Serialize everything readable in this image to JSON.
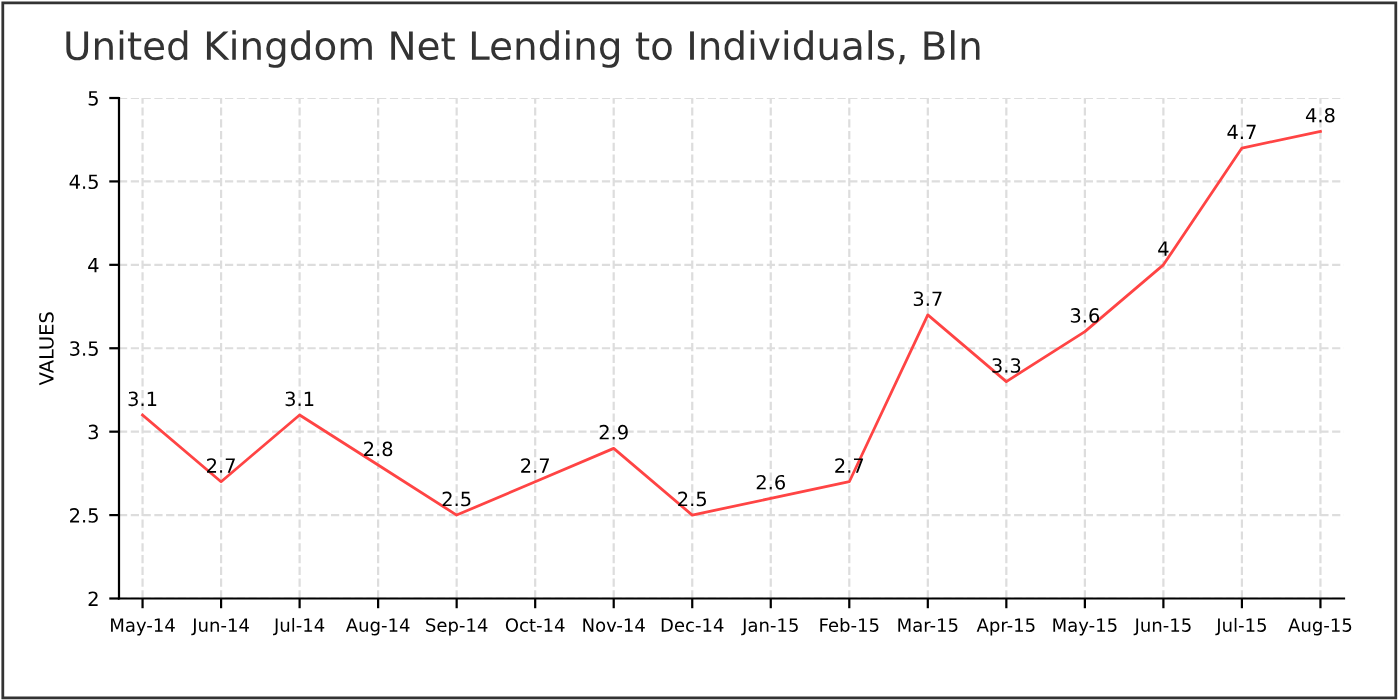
{
  "chart_data": {
    "type": "line",
    "title": "United Kingdom Net Lending to Individuals, Bln",
    "ylabel": "VALUES",
    "categories": [
      "May-14",
      "Jun-14",
      "Jul-14",
      "Aug-14",
      "Sep-14",
      "Oct-14",
      "Nov-14",
      "Dec-14",
      "Jan-15",
      "Feb-15",
      "Mar-15",
      "Apr-15",
      "May-15",
      "Jun-15",
      "Jul-15",
      "Aug-15"
    ],
    "series": [
      {
        "color": "#ff4444",
        "values": [
          3.1,
          2.7,
          3.1,
          2.8,
          2.5,
          2.7,
          2.9,
          2.5,
          2.6,
          2.7,
          3.7,
          3.3,
          3.6,
          4,
          4.7,
          4.8
        ]
      }
    ],
    "ylim": [
      2,
      5
    ],
    "yticks": [
      2,
      2.5,
      3,
      3.5,
      4,
      4.5,
      5
    ],
    "grid": true,
    "data_labels": true,
    "marker": "none",
    "line_style": "solid"
  }
}
